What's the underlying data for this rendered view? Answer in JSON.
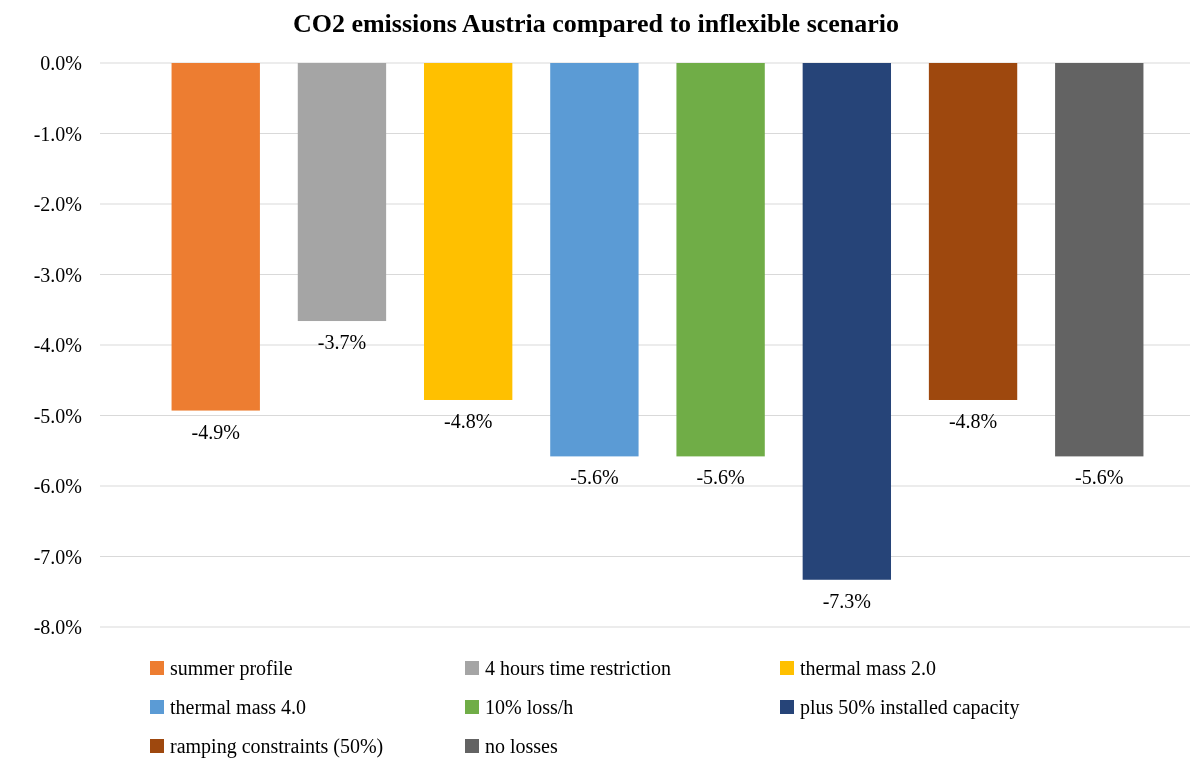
{
  "chart_data": {
    "type": "bar",
    "title": "CO2 emissions Austria compared to inflexible scenario",
    "categories": [
      null
    ],
    "series": [
      {
        "name": "summer profile",
        "color": "#ed7d31",
        "values": [
          -4.93
        ],
        "value_labels": [
          "-4.9%"
        ]
      },
      {
        "name": "4 hours time restriction",
        "color": "#a5a5a5",
        "values": [
          -3.66
        ],
        "value_labels": [
          "-3.7%"
        ]
      },
      {
        "name": "thermal mass 2.0",
        "color": "#ffc000",
        "values": [
          -4.78
        ],
        "value_labels": [
          "-4.8%"
        ]
      },
      {
        "name": "thermal mass 4.0",
        "color": "#5b9bd5",
        "values": [
          -5.58
        ],
        "value_labels": [
          "-5.6%"
        ]
      },
      {
        "name": "10% loss/h",
        "color": "#70ad47",
        "values": [
          -5.58
        ],
        "value_labels": [
          "-5.6%"
        ]
      },
      {
        "name": "plus 50% installed capacity",
        "color": "#264478",
        "values": [
          -7.33
        ],
        "value_labels": [
          "-7.3%"
        ]
      },
      {
        "name": "ramping constraints (50%)",
        "color": "#9e480e",
        "values": [
          -4.78
        ],
        "value_labels": [
          "-4.8%"
        ]
      },
      {
        "name": "no losses",
        "color": "#636363",
        "values": [
          -5.58
        ],
        "value_labels": [
          "-5.6%"
        ]
      }
    ],
    "ylim": [
      -8,
      0
    ],
    "yticks": [
      {
        "value": 0,
        "label": "0.0%"
      },
      {
        "value": -1,
        "label": "-1.0%"
      },
      {
        "value": -2,
        "label": "-2.0%"
      },
      {
        "value": -3,
        "label": "-3.0%"
      },
      {
        "value": -4,
        "label": "-4.0%"
      },
      {
        "value": -5,
        "label": "-5.0%"
      },
      {
        "value": -6,
        "label": "-6.0%"
      },
      {
        "value": -7,
        "label": "-7.0%"
      },
      {
        "value": -8,
        "label": "-8.0%"
      }
    ],
    "grid": "y",
    "legend": "bottom"
  }
}
